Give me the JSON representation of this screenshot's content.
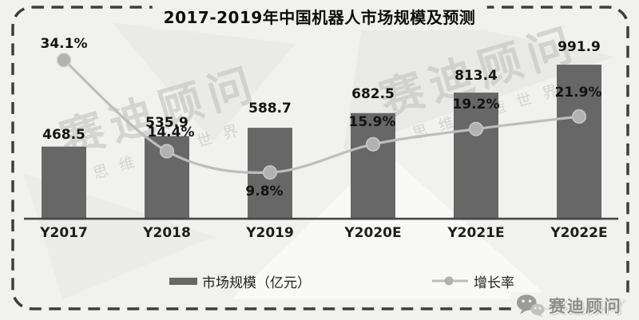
{
  "title": "2017-2019年中国机器人市场规模及预测",
  "legend": {
    "bar_label": "市场规模（亿元）",
    "line_label": "增长率"
  },
  "watermark": {
    "big_text": "赛迪顾问",
    "small_text": "思维创造世界"
  },
  "logo": {
    "icon": "wechat-icon",
    "text": "赛迪顾问"
  },
  "colors": {
    "bar": "#676767",
    "line": "#bdbdbd",
    "marker": "#b2b2b2",
    "marker_rim": "#c9c9c9",
    "axis": "#464646",
    "border": "#3d3d3d",
    "text": "#131313",
    "watermark": "#c3c3c1",
    "background": "#f1f1ef"
  },
  "chart_data": {
    "type": "bar+line",
    "title": "2017-2019年中国机器人市场规模及预测",
    "categories": [
      "Y2017",
      "Y2018",
      "Y2019",
      "Y2020E",
      "Y2021E",
      "Y2022E"
    ],
    "series": [
      {
        "name": "市场规模（亿元）",
        "type": "bar",
        "values": [
          468.5,
          535.9,
          588.7,
          682.5,
          813.4,
          991.9
        ],
        "unit": "亿元"
      },
      {
        "name": "增长率",
        "type": "line",
        "values": [
          34.1,
          14.4,
          9.8,
          15.9,
          19.2,
          21.9
        ],
        "unit": "%"
      }
    ],
    "value_labels_shown": true,
    "grid": false,
    "legend_position": "bottom",
    "ylim_bar": [
      0,
      1050
    ],
    "ylim_line_pct": [
      0,
      35
    ]
  }
}
